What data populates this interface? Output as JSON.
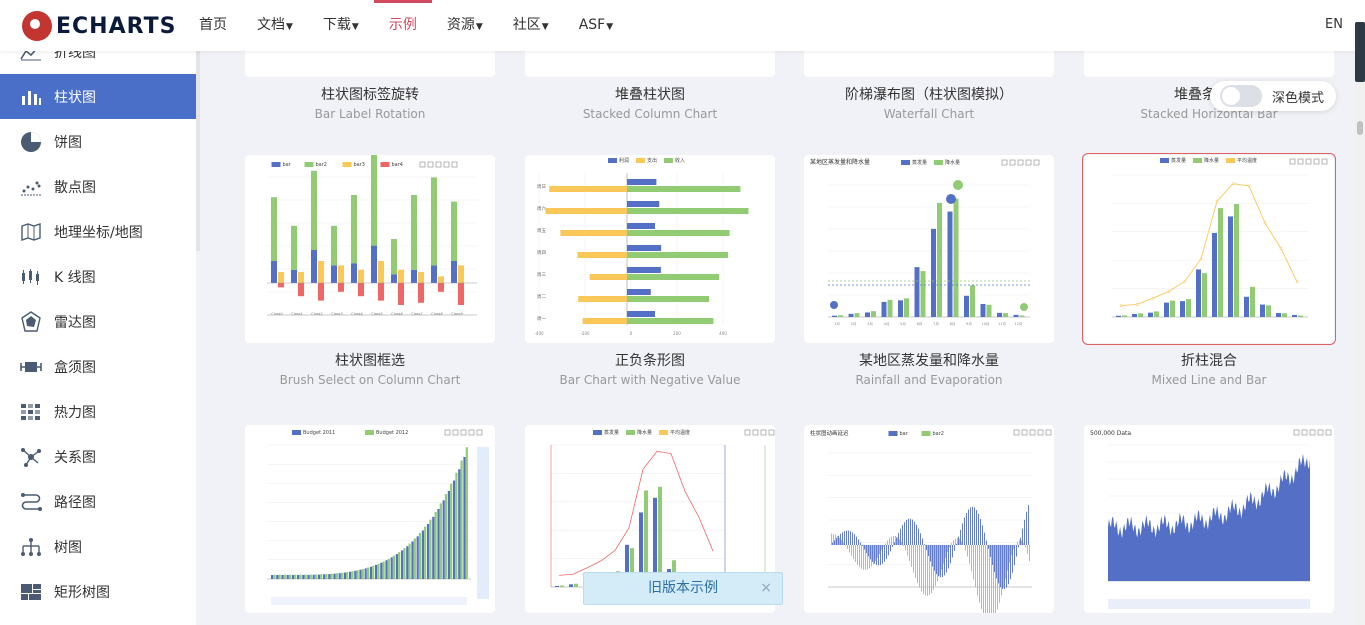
{
  "logo": {
    "text": "ECHARTS"
  },
  "nav": [
    {
      "label": "首页",
      "caret": false,
      "active": false
    },
    {
      "label": "文档",
      "caret": true,
      "active": false
    },
    {
      "label": "下载",
      "caret": true,
      "active": false
    },
    {
      "label": "示例",
      "caret": false,
      "active": true
    },
    {
      "label": "资源",
      "caret": true,
      "active": false
    },
    {
      "label": "社区",
      "caret": true,
      "active": false
    },
    {
      "label": "ASF",
      "caret": true,
      "active": false
    }
  ],
  "lang": "EN",
  "sidebar": {
    "items": [
      {
        "label": "折线图",
        "icon": "line-chart-icon",
        "active": false
      },
      {
        "label": "柱状图",
        "icon": "bar-chart-icon",
        "active": true
      },
      {
        "label": "饼图",
        "icon": "pie-chart-icon",
        "active": false
      },
      {
        "label": "散点图",
        "icon": "scatter-chart-icon",
        "active": false
      },
      {
        "label": "地理坐标/地图",
        "icon": "map-icon",
        "active": false
      },
      {
        "label": "K 线图",
        "icon": "candlestick-icon",
        "active": false
      },
      {
        "label": "雷达图",
        "icon": "radar-icon",
        "active": false
      },
      {
        "label": "盒须图",
        "icon": "boxplot-icon",
        "active": false
      },
      {
        "label": "热力图",
        "icon": "heatmap-icon",
        "active": false
      },
      {
        "label": "关系图",
        "icon": "graph-icon",
        "active": false
      },
      {
        "label": "路径图",
        "icon": "lines-icon",
        "active": false
      },
      {
        "label": "树图",
        "icon": "tree-icon",
        "active": false
      },
      {
        "label": "矩形树图",
        "icon": "treemap-icon",
        "active": false
      }
    ]
  },
  "dark_mode": {
    "label": "深色模式",
    "on": false
  },
  "old_version_banner": {
    "label": "旧版本示例",
    "close": "×"
  },
  "cards": [
    {
      "title": "柱状图标签旋转",
      "subtitle": "Bar Label Rotation",
      "kind": "row0a"
    },
    {
      "title": "堆叠柱状图",
      "subtitle": "Stacked Column Chart",
      "kind": "row0b"
    },
    {
      "title": "阶梯瀑布图（柱状图模拟）",
      "subtitle": "Waterfall Chart",
      "kind": "row0c"
    },
    {
      "title": "堆叠条形图",
      "subtitle": "Stacked Horizontal Bar",
      "kind": "row0d"
    },
    {
      "title": "柱状图框选",
      "subtitle": "Brush Select on Column Chart",
      "kind": "brush"
    },
    {
      "title": "正负条形图",
      "subtitle": "Bar Chart with Negative Value",
      "kind": "negative"
    },
    {
      "title": "某地区蒸发量和降水量",
      "subtitle": "Rainfall and Evaporation",
      "kind": "rainfall"
    },
    {
      "title": "折柱混合",
      "subtitle": "Mixed Line and Bar",
      "kind": "mixed",
      "selected": true
    },
    {
      "title": "",
      "subtitle": "",
      "kind": "budget"
    },
    {
      "title": "",
      "subtitle": "",
      "kind": "multiaxis"
    },
    {
      "title": "",
      "subtitle": "",
      "kind": "animation"
    },
    {
      "title": "",
      "subtitle": "",
      "kind": "large"
    }
  ],
  "thumb_text": {
    "brush_legend": [
      "bar",
      "bar2",
      "bar3",
      "bar4"
    ],
    "negative_legend": [
      "利润",
      "支出",
      "收入"
    ],
    "negative_days": [
      "周日",
      "周六",
      "周五",
      "周四",
      "周三",
      "周二",
      "周一"
    ],
    "rainfall_title": "某地区蒸发量和降水量",
    "rainfall_legend": [
      "蒸发量",
      "降水量"
    ],
    "mixed_legend": [
      "蒸发量",
      "降水量",
      "平均温度"
    ],
    "budget_legend": [
      "Budget 2011",
      "Budget 2012"
    ],
    "animation_title": "柱状图动画延迟",
    "animation_legend": [
      "bar",
      "bar2"
    ],
    "large_title": "500,000 Data"
  },
  "colors": {
    "blue": "#5470c6",
    "green": "#91cc75",
    "yellow": "#fac858",
    "red": "#ee6666",
    "accent": "#d14a61",
    "sidebar_active": "#4a6fc9"
  }
}
